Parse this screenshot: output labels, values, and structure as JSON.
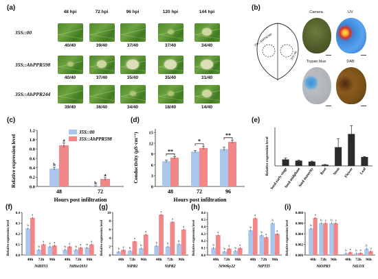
{
  "panels": {
    "a": "(a)",
    "b": "(b)",
    "c": "(c)",
    "d": "(d)",
    "e": "(e)",
    "f": "(f)",
    "g": "(g)",
    "h": "(h)",
    "i": "(i)"
  },
  "leaf_grid": {
    "timepoints": [
      "48 hpi",
      "72 hpi",
      "96 hpi",
      "120 hpi",
      "144 hpi"
    ],
    "rows": [
      {
        "label": "35S::00",
        "scores": [
          "40/40",
          "39/40",
          "37/40",
          "37/40",
          "34/40"
        ],
        "severity": [
          0,
          0,
          0,
          1,
          2
        ]
      },
      {
        "label": "35S::AhPPR598",
        "scores": [
          "40/40",
          "37/40",
          "35/40",
          "35/40",
          "31/40"
        ],
        "severity": [
          1,
          2,
          3,
          3,
          3
        ]
      },
      {
        "label": "35S::AhPPR244",
        "scores": [
          "39/40",
          "36/40",
          "34/40",
          "18/40",
          "14/40"
        ],
        "severity": [
          0,
          0,
          1,
          1,
          2
        ]
      }
    ]
  },
  "panel_b": {
    "schematic_left": "35S::AhPPR598",
    "schematic_right": "35S::00",
    "captions": [
      "Camera",
      "UV",
      "Trypan blue",
      "DAB"
    ]
  },
  "colors": {
    "control": "#aac6ea",
    "treatment": "#f2878a",
    "dark_bar": "#2b2b2b"
  },
  "chart_data": [
    {
      "id": "c",
      "type": "bar",
      "ylabel": "Relative expression level",
      "xlabel": "Hours post infiltration",
      "categories": [
        "48",
        "72"
      ],
      "series": [
        {
          "name": "35S::00",
          "values": [
            0.38,
            0.01
          ],
          "err": [
            0.03,
            0.005
          ]
        },
        {
          "name": "35S::AhPPR598",
          "values": [
            0.88,
            0.16
          ],
          "err": [
            0.05,
            0.03
          ]
        }
      ],
      "letters": [
        [
          "b",
          "a"
        ],
        [
          "b",
          "a"
        ]
      ],
      "ylim": [
        0,
        1.2
      ],
      "yticks": [
        "0.0",
        "0.2",
        "0.4",
        "0.6",
        "0.8",
        "1.0",
        "1.2"
      ]
    },
    {
      "id": "d",
      "type": "bar",
      "ylabel": "Conductivity (μS·cm⁻¹)",
      "xlabel": "Hours post infiltration",
      "categories": [
        "48",
        "72",
        "96"
      ],
      "series": [
        {
          "name": "35S::00",
          "values": [
            7.0,
            9.7,
            10.4
          ],
          "err": [
            0.3,
            0.3,
            0.5
          ]
        },
        {
          "name": "35S::AhPPR598",
          "values": [
            8.0,
            10.7,
            12.4
          ],
          "err": [
            0.3,
            0.4,
            0.4
          ]
        }
      ],
      "sig": [
        "**",
        "*",
        "**"
      ],
      "ylim": [
        0,
        16
      ],
      "yticks": [
        "0",
        "3",
        "6",
        "9",
        "12",
        "15"
      ]
    },
    {
      "id": "e",
      "type": "bar",
      "ylabel": "Relative expression level",
      "categories": [
        "Seed early stage",
        "Seed midphase",
        "Seed maturity",
        "Root",
        "Stem",
        "Flower",
        "Leaf"
      ],
      "values": [
        0.27,
        0.22,
        0.18,
        0.05,
        0.78,
        1.33,
        0.37
      ],
      "err": [
        0.06,
        0.02,
        0.02,
        0.01,
        0.35,
        0.35,
        0.02
      ],
      "ylim": [
        0,
        1.6
      ]
    },
    {
      "id": "f",
      "type": "bar",
      "ylabel": "Relative expression level",
      "groups": [
        "NtHIN1",
        "NtHsr203J"
      ],
      "categories": [
        "48h",
        "72h",
        "96h",
        "48h",
        "72h",
        "96h"
      ],
      "series": [
        {
          "name": "35S::00",
          "values": [
            0.25,
            0.05,
            0.08,
            0.05,
            0.05,
            0.07
          ]
        },
        {
          "name": "35S::AhPPR598",
          "values": [
            0.35,
            0.1,
            0.09,
            0.08,
            0.07,
            0.1
          ]
        }
      ],
      "ylim": [
        0,
        0.4
      ],
      "yticks": [
        "0.0",
        "0.1",
        "0.2",
        "0.3",
        "0.4"
      ]
    },
    {
      "id": "g",
      "type": "bar",
      "ylabel": "Relative expression level",
      "groups": [
        "NtPR1",
        "NtPR2"
      ],
      "categories": [
        "48h",
        "72h",
        "96h",
        "48h",
        "72h",
        "96h"
      ],
      "series": [
        {
          "name": "35S::00",
          "values": [
            0.8,
            1.0,
            1.6,
            2.2,
            2.0,
            2.6
          ]
        },
        {
          "name": "35S::AhPPR598",
          "values": [
            1.2,
            3.2,
            4.8,
            9.5,
            7.8,
            6.0
          ]
        }
      ],
      "ylim": [
        0,
        10
      ],
      "yticks": [
        "0",
        "2",
        "4",
        "6",
        "8",
        "10"
      ]
    },
    {
      "id": "h",
      "type": "bar",
      "ylabel": "Relative expression level",
      "groups": [
        "NtWrky22",
        "NtPTI5"
      ],
      "categories": [
        "48h",
        "72h",
        "96h",
        "48h",
        "72h",
        "96h"
      ],
      "series": [
        {
          "name": "35S::00",
          "values": [
            0.1,
            0.05,
            0.06,
            0.35,
            0.28,
            0.45
          ]
        },
        {
          "name": "35S::AhPPR598",
          "values": [
            0.28,
            0.09,
            0.1,
            0.52,
            0.25,
            0.3
          ]
        }
      ],
      "ylim": [
        0,
        0.6
      ],
      "yticks": [
        "0.0",
        "0.1",
        "0.2",
        "0.3",
        "0.4",
        "0.5",
        "0.6"
      ]
    },
    {
      "id": "i",
      "type": "bar",
      "ylabel": "Relative expression level",
      "groups": [
        "NtOPR3",
        "NtLOX"
      ],
      "categories": [
        "48h",
        "72h",
        "96h",
        "48h",
        "72h",
        "96h"
      ],
      "series": [
        {
          "name": "35S::00",
          "values": [
            0.005,
            0.006,
            0.006,
            0.0003,
            0.0003,
            0.0012
          ]
        },
        {
          "name": "35S::AhPPR598",
          "values": [
            0.007,
            0.006,
            0.006,
            0.0005,
            0.0004,
            0.0007
          ]
        }
      ],
      "ylim": [
        0,
        0.008
      ],
      "yticks": [
        "0.000",
        "0.002",
        "0.004",
        "0.006",
        "0.008"
      ]
    }
  ]
}
